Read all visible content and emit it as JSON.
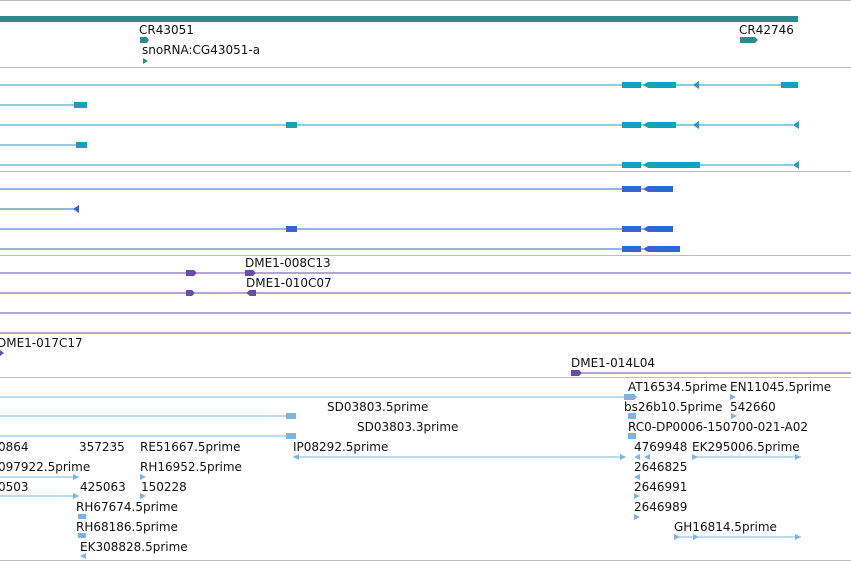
{
  "colors": {
    "cr": "#2e8b8b",
    "tx1": "#1a9fb8",
    "tx2": "#3366cc",
    "cdna": "#6a4ca8",
    "est": "#7db4e0",
    "divider": "#bfbfbf",
    "text": "#111111"
  },
  "labels": {
    "cr43051": "CR43051",
    "snorna": "snoRNA:CG43051-a",
    "cr42746": "CR42746",
    "dme008c13": "DME1-008C13",
    "dme010c07": "DME1-010C07",
    "dme017c17": "DME1-017C17",
    "dme014l04": "DME1-014L04",
    "at16534": "AT16534.5prime",
    "en11045": "EN11045.5prime",
    "sd03803_5": "SD03803.5prime",
    "bs26b10": "bs26b10.5prime",
    "n542660": "542660",
    "sd03803_3": "SD03803.3prime",
    "rc0": "RC0-DP0006-150700-021-A02",
    "n0864": "0864",
    "n357235": "357235",
    "re51667": "RE51667.5prime",
    "ip08292": "IP08292.5prime",
    "n4769948": "4769948",
    "ek295006": "EK295006.5prime",
    "n097922": "097922.5prime",
    "rh16952": "RH16952.5prime",
    "n2646825": "2646825",
    "n0503": "0503",
    "n425063": "425063",
    "n150228": "150228",
    "n2646991": "2646991",
    "rh67674": "RH67674.5prime",
    "n2646989": "2646989",
    "rh68186": "RH68186.5prime",
    "gh16814": "GH16814.5prime",
    "ek308828": "EK308828.5prime"
  }
}
